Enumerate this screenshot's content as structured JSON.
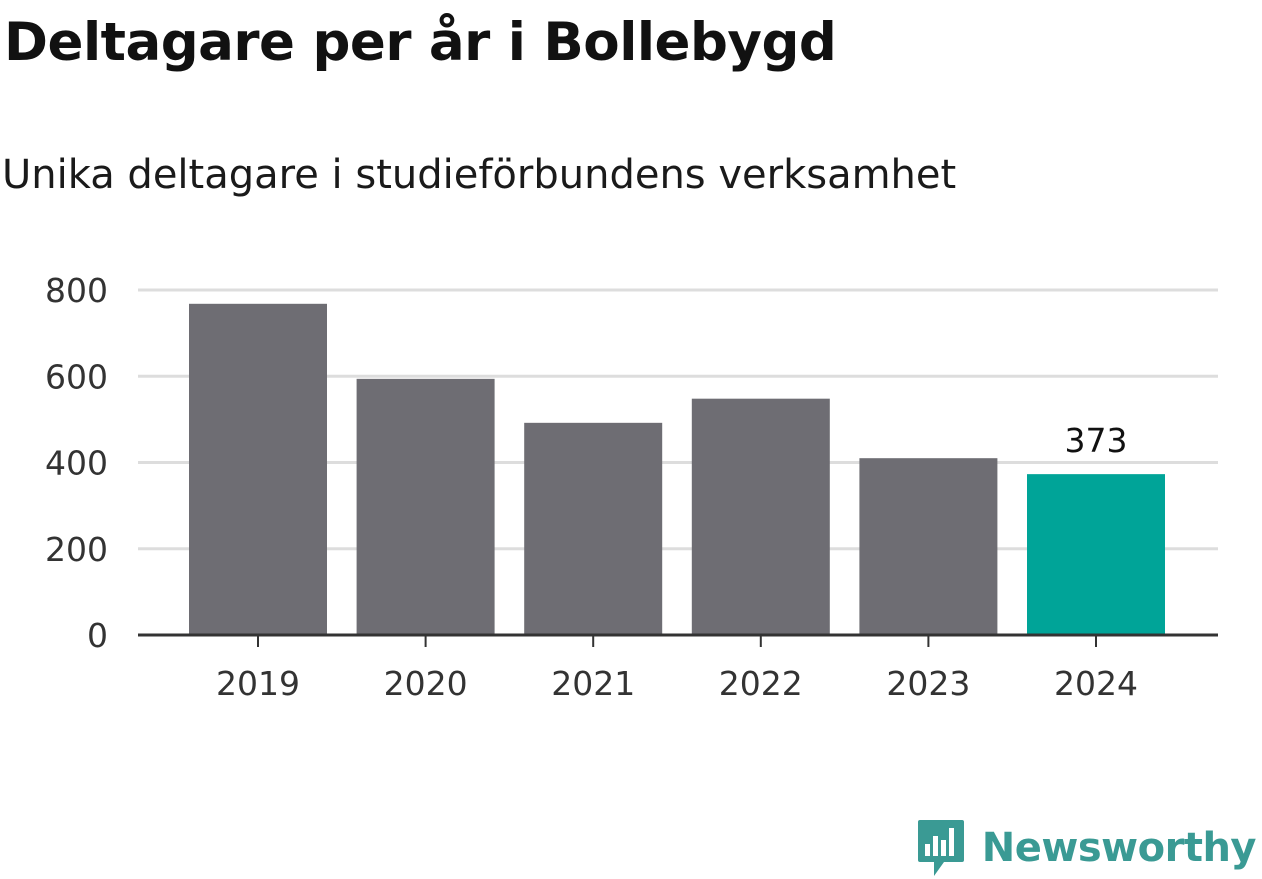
{
  "chart_data": {
    "type": "bar",
    "title": "Deltagare per år i Bollebygd",
    "subtitle": "Unika deltagare i studieförbundens verksamhet",
    "categories": [
      "2019",
      "2020",
      "2021",
      "2022",
      "2023",
      "2024"
    ],
    "values": [
      768,
      594,
      492,
      548,
      410,
      373
    ],
    "ylim": [
      0,
      800
    ],
    "yticks": [
      0,
      200,
      400,
      600,
      800
    ],
    "ytick_labels": [
      "0",
      "200",
      "400",
      "600",
      "800"
    ],
    "grid": true,
    "highlight_index": 5,
    "data_labels": [
      {
        "index": 5,
        "text": "373"
      }
    ],
    "colors": {
      "bar": "#6e6d73",
      "highlight": "#00a498",
      "grid": "#dddddd",
      "axis": "#333333"
    }
  },
  "brand": {
    "name": "Newsworthy",
    "icon": "newsworthy-logo-icon",
    "color": "#3a9a94"
  }
}
